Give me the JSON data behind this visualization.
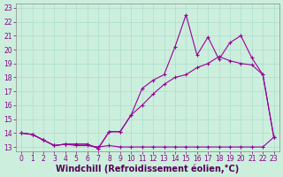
{
  "xlabel": "Windchill (Refroidissement éolien,°C)",
  "bg_color": "#cceedd",
  "line_color": "#990099",
  "x_min": 0,
  "x_max": 23,
  "y_min": 13,
  "y_max": 23,
  "x_ticks": [
    0,
    1,
    2,
    3,
    4,
    5,
    6,
    7,
    8,
    9,
    10,
    11,
    12,
    13,
    14,
    15,
    16,
    17,
    18,
    19,
    20,
    21,
    22,
    23
  ],
  "y_ticks": [
    13,
    14,
    15,
    16,
    17,
    18,
    19,
    20,
    21,
    22,
    23
  ],
  "series1_x": [
    0,
    1,
    2,
    3,
    4,
    5,
    6,
    7,
    8,
    9,
    10,
    11,
    12,
    13,
    14,
    15,
    16,
    17,
    18,
    19,
    20,
    21,
    22,
    23
  ],
  "series1_y": [
    14.0,
    13.9,
    13.5,
    13.1,
    13.2,
    13.1,
    13.1,
    13.0,
    13.1,
    13.0,
    13.0,
    13.0,
    13.0,
    13.0,
    13.0,
    13.0,
    13.0,
    13.0,
    13.0,
    13.0,
    13.0,
    13.0,
    13.0,
    13.7
  ],
  "series2_x": [
    0,
    1,
    2,
    3,
    4,
    5,
    6,
    7,
    8,
    9,
    10,
    11,
    12,
    13,
    14,
    15,
    16,
    17,
    18,
    19,
    20,
    21,
    22,
    23
  ],
  "series2_y": [
    14.0,
    13.9,
    13.5,
    13.1,
    13.2,
    13.2,
    13.2,
    12.9,
    14.1,
    14.1,
    15.3,
    16.0,
    16.8,
    17.5,
    18.0,
    18.2,
    18.7,
    19.0,
    19.5,
    19.2,
    19.0,
    18.9,
    18.2,
    13.7
  ],
  "series3_x": [
    0,
    1,
    2,
    3,
    4,
    5,
    6,
    7,
    8,
    9,
    10,
    11,
    12,
    13,
    14,
    15,
    16,
    17,
    18,
    19,
    20,
    21,
    22,
    23
  ],
  "series3_y": [
    14.0,
    13.9,
    13.5,
    13.1,
    13.2,
    13.2,
    13.2,
    12.9,
    14.1,
    14.1,
    15.3,
    17.2,
    17.8,
    18.2,
    20.2,
    22.5,
    19.6,
    20.9,
    19.3,
    20.5,
    21.0,
    19.4,
    18.2,
    13.7
  ],
  "grid_color": "#aaddcc",
  "tick_fontsize": 5.5,
  "xlabel_fontsize": 7.0
}
